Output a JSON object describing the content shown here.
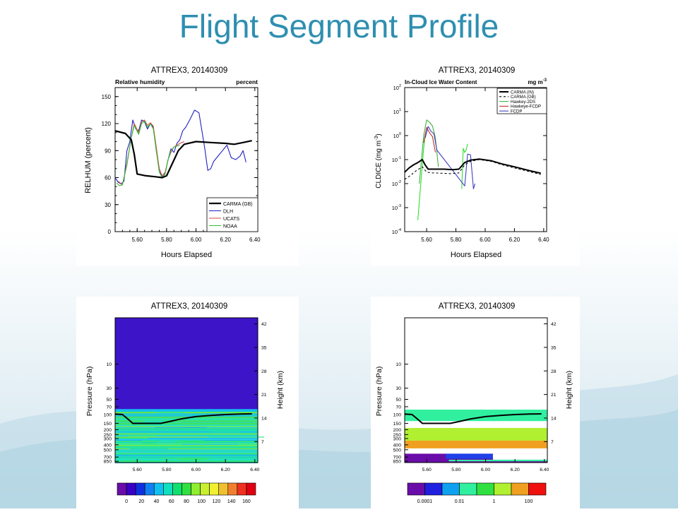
{
  "slide": {
    "title": "Flight Segment Profile"
  },
  "chart_data": [
    {
      "type": "line",
      "title": "ATTREX3, 20140309",
      "subtitle_left": "Relative humidity",
      "subtitle_right": "percent",
      "xlabel": "Hours Elapsed",
      "ylabel": "RELHUM (percent)",
      "xlim": [
        5.45,
        6.42
      ],
      "ylim": [
        0,
        160
      ],
      "xticks": [
        "5.60",
        "5.80",
        "6.00",
        "6.20",
        "6.40"
      ],
      "xtick_values": [
        5.6,
        5.8,
        6.0,
        6.2,
        6.4
      ],
      "yticks": [
        "0",
        "30",
        "60",
        "90",
        "120",
        "150"
      ],
      "ytick_values": [
        0,
        30,
        60,
        90,
        120,
        150
      ],
      "legend_position": "bottom-right",
      "series": [
        {
          "name": "CARMA (GB)",
          "color": "#000000",
          "width": 2.2,
          "x": [
            5.45,
            5.52,
            5.56,
            5.58,
            5.6,
            5.66,
            5.72,
            5.77,
            5.8,
            5.84,
            5.88,
            5.92,
            6.0,
            6.1,
            6.2,
            6.26,
            6.32,
            6.38
          ],
          "y": [
            112,
            109,
            102,
            86,
            64,
            62,
            61,
            60,
            62,
            76,
            90,
            97,
            100,
            99,
            98,
            97,
            99,
            101
          ]
        },
        {
          "name": "DLH",
          "color": "#2020c0",
          "width": 1.1,
          "x": [
            5.45,
            5.47,
            5.49,
            5.51,
            5.53,
            5.55,
            5.57,
            5.59,
            5.61,
            5.63,
            5.65,
            5.67,
            5.69,
            5.71,
            5.73,
            5.75,
            5.77,
            5.79,
            5.81,
            5.83,
            5.85,
            5.87,
            5.89,
            5.91,
            5.93,
            5.96,
            5.99,
            6.02,
            6.04,
            6.06,
            6.08,
            6.1,
            6.12,
            6.15,
            6.18,
            6.21,
            6.24,
            6.27,
            6.3,
            6.32,
            6.34
          ],
          "y": [
            60,
            55,
            53,
            56,
            90,
            100,
            124,
            114,
            112,
            124,
            122,
            114,
            120,
            116,
            90,
            70,
            60,
            65,
            80,
            92,
            88,
            98,
            102,
            112,
            116,
            125,
            135,
            132,
            112,
            92,
            68,
            70,
            78,
            84,
            90,
            96,
            82,
            80,
            84,
            90,
            77
          ]
        },
        {
          "name": "UCATS",
          "color": "#e04040",
          "width": 1.0,
          "x": [
            5.47,
            5.5,
            5.53,
            5.56,
            5.58,
            5.61,
            5.63,
            5.65,
            5.67,
            5.69,
            5.71,
            5.73,
            5.75,
            5.77,
            5.79,
            5.81,
            5.83,
            5.85,
            5.87,
            5.89,
            5.92
          ],
          "y": [
            56,
            52,
            74,
            104,
            120,
            110,
            122,
            124,
            118,
            121,
            117,
            94,
            70,
            62,
            66,
            80,
            88,
            94,
            96,
            98,
            100
          ]
        },
        {
          "name": "NOAA",
          "color": "#30c030",
          "width": 1.1,
          "x": [
            5.46,
            5.48,
            5.5,
            5.53,
            5.56,
            5.58,
            5.61,
            5.63,
            5.65,
            5.67,
            5.69,
            5.71,
            5.73,
            5.75,
            5.77,
            5.79,
            5.81,
            5.83,
            5.85,
            5.87,
            5.89
          ],
          "y": [
            54,
            51,
            52,
            76,
            104,
            118,
            108,
            120,
            123,
            116,
            120,
            114,
            90,
            66,
            60,
            64,
            80,
            90,
            94,
            95,
            96
          ]
        }
      ]
    },
    {
      "type": "line",
      "title": "ATTREX3, 20140309",
      "subtitle_left": "In-Cloud Ice Water Content",
      "subtitle_right": "mg m",
      "subtitle_right_sup": "-3",
      "xlabel": "Hours Elapsed",
      "ylabel": "CLDICE (mg m",
      "ylabel_sup": "-3",
      "ylabel_end": ")",
      "yscale": "log",
      "xlim": [
        5.45,
        6.42
      ],
      "ylim_exp": [
        -4,
        2
      ],
      "xticks": [
        "5.60",
        "5.80",
        "6.00",
        "6.20",
        "6.40"
      ],
      "xtick_values": [
        5.6,
        5.8,
        6.0,
        6.2,
        6.4
      ],
      "ytick_exponents": [
        -4,
        -3,
        -2,
        -1,
        0,
        1,
        2
      ],
      "ytick_base": "10",
      "legend_position": "top-right",
      "series": [
        {
          "name": "CARMA (IN)",
          "color": "#000000",
          "width": 2.0,
          "dash": "",
          "x": [
            5.45,
            5.48,
            5.51,
            5.54,
            5.57,
            5.59,
            5.61,
            5.66,
            5.72,
            5.78,
            5.82,
            5.86,
            5.9,
            5.96,
            6.04,
            6.12,
            6.2,
            6.3,
            6.38
          ],
          "y": [
            0.03,
            0.045,
            0.06,
            0.075,
            0.1,
            0.06,
            0.04,
            0.04,
            0.04,
            0.038,
            0.04,
            0.075,
            0.095,
            0.105,
            0.09,
            0.065,
            0.05,
            0.035,
            0.027
          ]
        },
        {
          "name": "CARMA (GB)",
          "color": "#000000",
          "width": 1.1,
          "dash": "3,3",
          "x": [
            5.45,
            5.49,
            5.53,
            5.57,
            5.6,
            5.64,
            5.7,
            5.76,
            5.82,
            5.86,
            5.9,
            5.96,
            6.04,
            6.12,
            6.2,
            6.3,
            6.38
          ],
          "y": [
            0.015,
            0.022,
            0.035,
            0.05,
            0.03,
            0.028,
            0.027,
            0.026,
            0.028,
            0.06,
            0.085,
            0.1,
            0.085,
            0.06,
            0.045,
            0.032,
            0.024
          ]
        },
        {
          "name": "Hawkey-2DS",
          "color": "#40b040",
          "width": 1.1,
          "dash": "",
          "x": [
            5.55,
            5.58,
            5.6,
            5.62,
            5.64,
            5.66,
            5.68
          ],
          "y": [
            0.01,
            1.0,
            4.5,
            3.6,
            2.5,
            0.8,
            0.05
          ]
        },
        {
          "name": "Hawkeye-FCDP",
          "color": "#c03030",
          "width": 1.1,
          "dash": "",
          "x": [
            5.58,
            5.6,
            5.62,
            5.64,
            5.66
          ],
          "y": [
            0.5,
            2.2,
            1.3,
            0.9,
            0.2
          ]
        },
        {
          "name": "FCDP",
          "color": "#4040c0",
          "width": 1.1,
          "dash": "",
          "x": [
            5.59,
            5.61,
            5.63,
            5.65,
            5.67,
            5.86,
            5.88,
            5.9,
            5.92,
            5.93
          ],
          "y": [
            0.8,
            2.4,
            1.5,
            1.2,
            0.25,
            0.008,
            0.17,
            0.16,
            0.006,
            0.01
          ]
        }
      ],
      "extra_series": [
        {
          "color": "#30e030",
          "width": 1.1,
          "x": [
            5.54,
            5.56,
            5.58,
            5.59
          ],
          "y": [
            0.0003,
            0.01,
            0.3,
            1.0
          ]
        },
        {
          "color": "#30e030",
          "width": 1.1,
          "x": [
            5.84,
            5.85,
            5.86,
            5.87,
            5.88
          ],
          "y": [
            0.006,
            0.3,
            0.2,
            0.25,
            0.45
          ]
        }
      ]
    },
    {
      "type": "heatmap",
      "title": "ATTREX3, 20140309",
      "xlabel": "",
      "ylabel": "Pressure (hPa)",
      "ylabel_right": "Height (km)",
      "xticks": [
        "5.60",
        "5.80",
        "6.00",
        "6.20",
        "6.40"
      ],
      "xtick_values": [
        5.6,
        5.8,
        6.0,
        6.2,
        6.4
      ],
      "xlim": [
        5.45,
        6.42
      ],
      "pressure_ticks": [
        "10",
        "30",
        "50",
        "70",
        "100",
        "150",
        "200",
        "250",
        "300",
        "400",
        "500",
        "700",
        "850"
      ],
      "pressure_values": [
        10,
        30,
        50,
        70,
        100,
        150,
        200,
        250,
        300,
        400,
        500,
        700,
        850
      ],
      "height_ticks": [
        "42",
        "35",
        "28",
        "21",
        "14",
        "7"
      ],
      "height_values": [
        42,
        35,
        28,
        21,
        14,
        7
      ],
      "colorbar_labels": [
        "0",
        "20",
        "40",
        "60",
        "80",
        "100",
        "120",
        "140",
        "160"
      ],
      "colorbar_colors": [
        "#6a0da8",
        "#3a00c8",
        "#1030e0",
        "#1080f0",
        "#10c0f0",
        "#10e0c0",
        "#10e070",
        "#30e040",
        "#90ee30",
        "#c8f030",
        "#f0f030",
        "#f0c030",
        "#f08030",
        "#f03020",
        "#e00010"
      ],
      "track": {
        "x": [
          5.45,
          5.5,
          5.54,
          5.57,
          5.62,
          5.7,
          5.76,
          5.82,
          5.9,
          6.0,
          6.1,
          6.2,
          6.3,
          6.38
        ],
        "p": [
          98,
          100,
          125,
          150,
          150,
          150,
          150,
          138,
          122,
          110,
          104,
          100,
          98,
          97
        ]
      }
    },
    {
      "type": "heatmap",
      "title": "ATTREX3, 20140309",
      "xlabel": "",
      "ylabel": "Pressure (hPa)",
      "ylabel_right": "Height (km)",
      "xticks": [
        "5.60",
        "5.80",
        "6.00",
        "6.20",
        "6.40"
      ],
      "xtick_values": [
        5.6,
        5.8,
        6.0,
        6.2,
        6.4
      ],
      "xlim": [
        5.45,
        6.42
      ],
      "pressure_ticks": [
        "10",
        "30",
        "50",
        "70",
        "100",
        "150",
        "200",
        "250",
        "300",
        "400",
        "500",
        "700",
        "850"
      ],
      "pressure_values": [
        10,
        30,
        50,
        70,
        100,
        150,
        200,
        250,
        300,
        400,
        500,
        700,
        850
      ],
      "height_ticks": [
        "42",
        "35",
        "28",
        "21",
        "14",
        "7"
      ],
      "height_values": [
        42,
        35,
        28,
        21,
        14,
        7
      ],
      "colorbar_labels": [
        "0.0001",
        "0.01",
        "1",
        "100"
      ],
      "colorbar_colors": [
        "#6a0da8",
        "#2020e0",
        "#10a0f0",
        "#30f0a0",
        "#30e040",
        "#b0f030",
        "#f0a020",
        "#f01010"
      ],
      "track": {
        "x": [
          5.45,
          5.5,
          5.54,
          5.57,
          5.62,
          5.7,
          5.76,
          5.82,
          5.9,
          6.0,
          6.1,
          6.2,
          6.3,
          6.38
        ],
        "p": [
          98,
          100,
          125,
          150,
          150,
          150,
          150,
          138,
          122,
          110,
          104,
          100,
          98,
          97
        ]
      }
    }
  ]
}
